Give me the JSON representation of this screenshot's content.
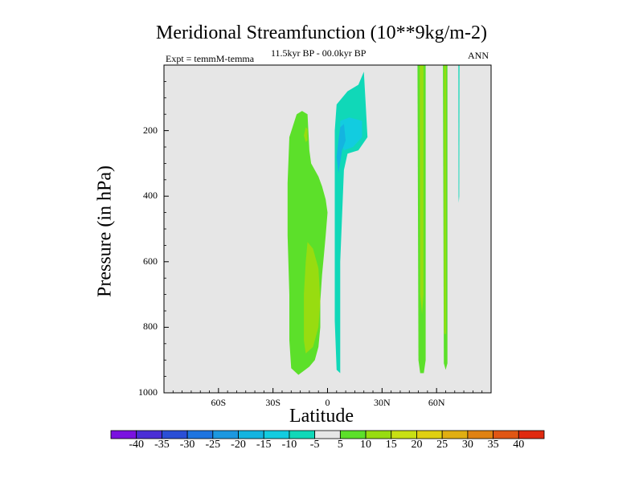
{
  "chart_data": {
    "type": "contour",
    "title": "Meridional Streamfunction (10**9kg/m-2)",
    "subtitle_left": "Expt = temmM-temma",
    "subtitle_center": "11.5kyr BP - 00.0kyr BP",
    "subtitle_right": "ANN",
    "xlabel": "Latitude",
    "ylabel": "Pressure (in hPa)",
    "xlim": [
      -90,
      90
    ],
    "ylim": [
      1000,
      0
    ],
    "x_ticks": [
      {
        "value": -60,
        "label": "60S"
      },
      {
        "value": -30,
        "label": "30S"
      },
      {
        "value": 0,
        "label": "0"
      },
      {
        "value": 30,
        "label": "30N"
      },
      {
        "value": 60,
        "label": "60N"
      }
    ],
    "y_ticks": [
      {
        "value": 200,
        "label": "200"
      },
      {
        "value": 400,
        "label": "400"
      },
      {
        "value": 600,
        "label": "600"
      },
      {
        "value": 800,
        "label": "800"
      },
      {
        "value": 1000,
        "label": "1000"
      }
    ],
    "colorbar": {
      "labels": [
        "-40",
        "-35",
        "-30",
        "-25",
        "-20",
        "-15",
        "-10",
        "-5",
        "5",
        "10",
        "15",
        "20",
        "25",
        "30",
        "35",
        "40"
      ],
      "colors": [
        "#7a12e0",
        "#4a2ed6",
        "#2a4ed6",
        "#1e74e0",
        "#1c98e0",
        "#14b4e0",
        "#12cce0",
        "#10d8b8",
        "#e6e6e6",
        "#5ce02a",
        "#98dc10",
        "#c8e014",
        "#e0d012",
        "#e0ae12",
        "#e08212",
        "#e05614",
        "#e02a10"
      ]
    },
    "regions": [
      {
        "name": "sh-positive-cell",
        "level": "5",
        "color": "#5ce02a",
        "points": [
          [
            -14,
            140
          ],
          [
            -11,
            150
          ],
          [
            -10,
            260
          ],
          [
            -9,
            300
          ],
          [
            -5,
            340
          ],
          [
            -3,
            370
          ],
          [
            -1,
            410
          ],
          [
            0,
            450
          ],
          [
            -1,
            520
          ],
          [
            -2,
            580
          ],
          [
            -3,
            640
          ],
          [
            -4,
            720
          ],
          [
            -4,
            800
          ],
          [
            -5,
            860
          ],
          [
            -7,
            900
          ],
          [
            -10,
            920
          ],
          [
            -16,
            945
          ],
          [
            -20,
            925
          ],
          [
            -21,
            840
          ],
          [
            -21,
            700
          ],
          [
            -22,
            520
          ],
          [
            -22,
            360
          ],
          [
            -21,
            220
          ],
          [
            -17,
            150
          ]
        ]
      },
      {
        "name": "sh-positive-core",
        "level": "10",
        "color": "#98dc10",
        "points": [
          [
            -11,
            540
          ],
          [
            -8,
            560
          ],
          [
            -5,
            620
          ],
          [
            -4,
            720
          ],
          [
            -5,
            800
          ],
          [
            -8,
            860
          ],
          [
            -12,
            880
          ],
          [
            -13,
            840
          ],
          [
            -13,
            700
          ],
          [
            -12,
            600
          ]
        ]
      },
      {
        "name": "sh-positive-spot",
        "level": "10",
        "color": "#98dc10",
        "points": [
          [
            -12,
            190
          ],
          [
            -11,
            195
          ],
          [
            -11,
            230
          ],
          [
            -12,
            235
          ],
          [
            -13,
            215
          ]
        ]
      },
      {
        "name": "tropical-negative-cell",
        "level": "-5",
        "color": "#10d8b8",
        "points": [
          [
            5,
            120
          ],
          [
            11,
            80
          ],
          [
            17,
            60
          ],
          [
            20,
            20
          ],
          [
            21,
            120
          ],
          [
            22,
            220
          ],
          [
            17,
            260
          ],
          [
            11,
            270
          ],
          [
            9,
            320
          ],
          [
            7,
            600
          ],
          [
            7,
            940
          ],
          [
            5,
            930
          ],
          [
            4,
            780
          ],
          [
            4,
            400
          ],
          [
            4,
            200
          ]
        ]
      },
      {
        "name": "tropical-negative-mid",
        "level": "-10",
        "color": "#12cce0",
        "points": [
          [
            7,
            170
          ],
          [
            12,
            160
          ],
          [
            19,
            170
          ],
          [
            19,
            220
          ],
          [
            14,
            250
          ],
          [
            9,
            260
          ],
          [
            7,
            220
          ]
        ]
      },
      {
        "name": "tropical-negative-core",
        "level": "-15",
        "color": "#14b4e0",
        "points": [
          [
            7,
            190
          ],
          [
            9,
            180
          ],
          [
            10,
            230
          ],
          [
            8,
            260
          ],
          [
            6,
            330
          ],
          [
            5,
            280
          ],
          [
            6,
            230
          ]
        ]
      },
      {
        "name": "nh-positive-strip-1",
        "level": "5",
        "color": "#5ce02a",
        "points": [
          [
            49.5,
            -20
          ],
          [
            54,
            -20
          ],
          [
            54,
            900
          ],
          [
            53,
            940
          ],
          [
            51,
            940
          ],
          [
            50,
            900
          ]
        ]
      },
      {
        "name": "nh-positive-strip-1-core",
        "level": "10",
        "color": "#98dc10",
        "points": [
          [
            50.7,
            -20
          ],
          [
            52.8,
            -20
          ],
          [
            52.8,
            700
          ],
          [
            52,
            760
          ],
          [
            51,
            700
          ]
        ]
      },
      {
        "name": "nh-positive-strip-2",
        "level": "5",
        "color": "#5ce02a",
        "points": [
          [
            63.5,
            -20
          ],
          [
            66,
            -20
          ],
          [
            66,
            910
          ],
          [
            65,
            930
          ],
          [
            64,
            910
          ]
        ]
      },
      {
        "name": "nh-positive-strip-2-core",
        "level": "10",
        "color": "#98dc10",
        "points": [
          [
            64.2,
            -20
          ],
          [
            65.2,
            -20
          ],
          [
            65.2,
            820
          ],
          [
            64.2,
            820
          ]
        ]
      },
      {
        "name": "nh-negative-sliver",
        "level": "-5",
        "color": "#10d8b8",
        "points": [
          [
            72,
            -20
          ],
          [
            72.6,
            -20
          ],
          [
            72.5,
            400
          ],
          [
            72.2,
            420
          ],
          [
            72.1,
            400
          ]
        ]
      }
    ]
  }
}
